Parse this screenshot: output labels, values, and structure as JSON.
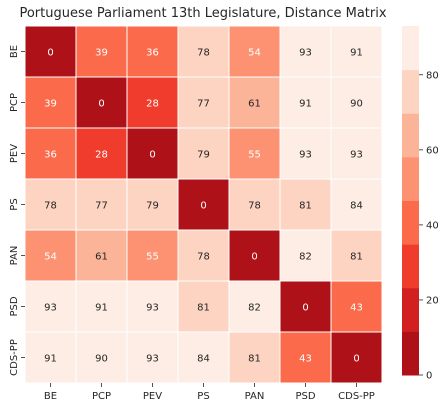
{
  "chart_data": {
    "type": "heatmap",
    "title": "Portuguese Parliament 13th Legislature, Distance Matrix",
    "xlabel": "",
    "ylabel": "",
    "x_categories": [
      "BE",
      "PCP",
      "PEV",
      "PS",
      "PAN",
      "PSD",
      "CDS-PP"
    ],
    "y_categories": [
      "BE",
      "PCP",
      "PEV",
      "PS",
      "PAN",
      "PSD",
      "CDS-PP"
    ],
    "values": [
      [
        0,
        39,
        36,
        78,
        54,
        93,
        91
      ],
      [
        39,
        0,
        28,
        77,
        61,
        91,
        90
      ],
      [
        36,
        28,
        0,
        79,
        55,
        93,
        93
      ],
      [
        78,
        77,
        79,
        0,
        78,
        81,
        84
      ],
      [
        54,
        61,
        55,
        78,
        0,
        82,
        81
      ],
      [
        93,
        91,
        93,
        81,
        82,
        0,
        43
      ],
      [
        91,
        90,
        93,
        84,
        81,
        43,
        0
      ]
    ],
    "colorbar": {
      "range": [
        0,
        93
      ],
      "ticks": [
        0,
        20,
        40,
        60,
        80
      ],
      "bins": 8,
      "colors": [
        "#ae1117",
        "#d22020",
        "#ef3c2d",
        "#fb6b4b",
        "#fc9272",
        "#fcb499",
        "#fdd4c2",
        "#feede4"
      ]
    },
    "annotation_colors": {
      "dark_text": "#262626",
      "light_text": "#ffffff"
    }
  }
}
